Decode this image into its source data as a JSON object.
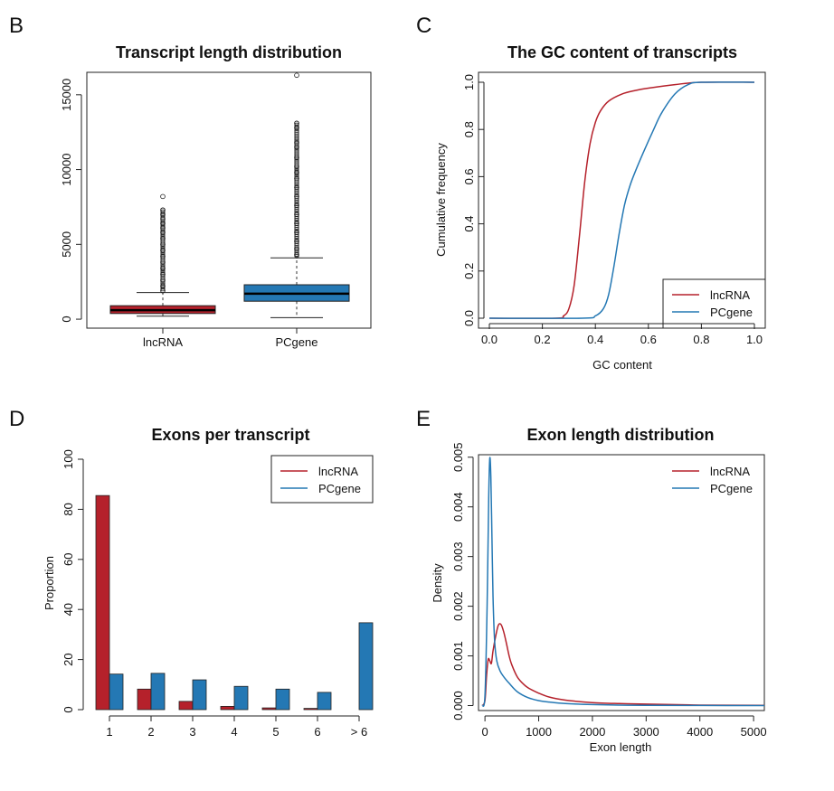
{
  "colors": {
    "lncRNA": "#b5212b",
    "PCgene": "#2478b4"
  },
  "chart_data": [
    {
      "panel": "B",
      "type": "box",
      "title": "Transcript length distribution",
      "xlabel": "",
      "ylabel": "",
      "ylim": [
        -600,
        16500
      ],
      "yticks": [
        0,
        5000,
        10000,
        15000
      ],
      "categories": [
        "lncRNA",
        "PCgene"
      ],
      "boxes": [
        {
          "name": "lncRNA",
          "min": 200,
          "q1": 380,
          "median": 600,
          "q3": 900,
          "max": 1780,
          "outliers": [
            1900,
            2200,
            2600,
            3000,
            3400,
            3800,
            4200,
            4600,
            5000,
            5400,
            5800,
            6100,
            6400,
            6700,
            7000,
            7300,
            8200
          ]
        },
        {
          "name": "PCgene",
          "min": 100,
          "q1": 1200,
          "median": 1700,
          "q3": 2300,
          "max": 4100,
          "outliers": [
            4300,
            4700,
            5200,
            5800,
            6400,
            7000,
            7600,
            8200,
            8800,
            9400,
            9800,
            10200,
            10800,
            11500,
            11800,
            12800,
            13100,
            16300
          ]
        }
      ]
    },
    {
      "panel": "C",
      "type": "line",
      "title": "The GC content of transcripts",
      "xlabel": "GC content",
      "ylabel": "Cumulative frequency",
      "xlim": [
        0,
        1
      ],
      "ylim": [
        0,
        1
      ],
      "xticks": [
        0.0,
        0.2,
        0.4,
        0.6,
        0.8,
        1.0
      ],
      "yticks": [
        0.0,
        0.2,
        0.4,
        0.6,
        0.8,
        1.0
      ],
      "legend": "bottom-right",
      "series": [
        {
          "name": "lncRNA",
          "x": [
            0.0,
            0.25,
            0.28,
            0.3,
            0.32,
            0.34,
            0.36,
            0.38,
            0.4,
            0.42,
            0.45,
            0.5,
            0.55,
            0.6,
            0.7,
            0.8,
            1.0
          ],
          "y": [
            0.0,
            0.0,
            0.01,
            0.04,
            0.14,
            0.35,
            0.58,
            0.74,
            0.83,
            0.88,
            0.92,
            0.95,
            0.965,
            0.975,
            0.99,
            1.0,
            1.0
          ]
        },
        {
          "name": "PCgene",
          "x": [
            0.0,
            0.35,
            0.4,
            0.43,
            0.45,
            0.47,
            0.49,
            0.51,
            0.53,
            0.55,
            0.58,
            0.62,
            0.65,
            0.7,
            0.75,
            0.8,
            1.0
          ],
          "y": [
            0.0,
            0.0,
            0.01,
            0.04,
            0.1,
            0.22,
            0.36,
            0.48,
            0.56,
            0.62,
            0.7,
            0.8,
            0.87,
            0.95,
            0.99,
            1.0,
            1.0
          ]
        }
      ]
    },
    {
      "panel": "D",
      "type": "bar",
      "title": "Exons per transcript",
      "xlabel": "",
      "ylabel": "Proportion",
      "ylim": [
        0,
        100
      ],
      "yticks": [
        0,
        20,
        40,
        60,
        80,
        100
      ],
      "legend": "top-right",
      "categories": [
        "1",
        "2",
        "3",
        "4",
        "5",
        "6",
        "> 6"
      ],
      "series": [
        {
          "name": "lncRNA",
          "values": [
            85.5,
            8.2,
            3.3,
            1.3,
            0.7,
            0.5,
            0.0
          ]
        },
        {
          "name": "PCgene",
          "values": [
            14.2,
            14.5,
            11.9,
            9.3,
            8.2,
            6.9,
            34.7
          ]
        }
      ]
    },
    {
      "panel": "E",
      "type": "line",
      "title": "Exon length distribution",
      "xlabel": "Exon length",
      "ylabel": "Density",
      "xlim": [
        -120,
        5200
      ],
      "ylim": [
        -0.0001,
        0.00505
      ],
      "xticks": [
        0,
        1000,
        2000,
        3000,
        4000,
        5000
      ],
      "yticks": [
        0.0,
        0.001,
        0.002,
        0.003,
        0.004,
        0.005
      ],
      "legend": "top-right",
      "series": [
        {
          "name": "lncRNA",
          "x": [
            -50,
            0,
            30,
            60,
            90,
            120,
            150,
            200,
            250,
            300,
            350,
            400,
            450,
            500,
            600,
            700,
            800,
            1000,
            1200,
            1500,
            2000,
            2500,
            3000,
            4000,
            5200
          ],
          "y": [
            0,
            0.0001,
            0.0006,
            0.00093,
            0.0009,
            0.00085,
            0.0011,
            0.0014,
            0.00162,
            0.00163,
            0.00148,
            0.00125,
            0.001,
            0.00082,
            0.00058,
            0.00045,
            0.00036,
            0.00025,
            0.00017,
            0.00011,
            6e-05,
            4e-05,
            3e-05,
            1e-05,
            5e-06
          ]
        },
        {
          "name": "PCgene",
          "x": [
            -50,
            0,
            40,
            70,
            90,
            110,
            130,
            150,
            180,
            220,
            280,
            350,
            450,
            600,
            800,
            1000,
            1200,
            1500,
            2000,
            2500,
            3000,
            4000,
            5200
          ],
          "y": [
            0,
            0.0002,
            0.002,
            0.0042,
            0.00498,
            0.0046,
            0.0034,
            0.0022,
            0.0013,
            0.0009,
            0.0007,
            0.00058,
            0.00045,
            0.00028,
            0.00016,
            0.0001,
            7e-05,
            4e-05,
            2e-05,
            1e-05,
            5e-06,
            2e-06,
            0
          ]
        }
      ]
    }
  ]
}
